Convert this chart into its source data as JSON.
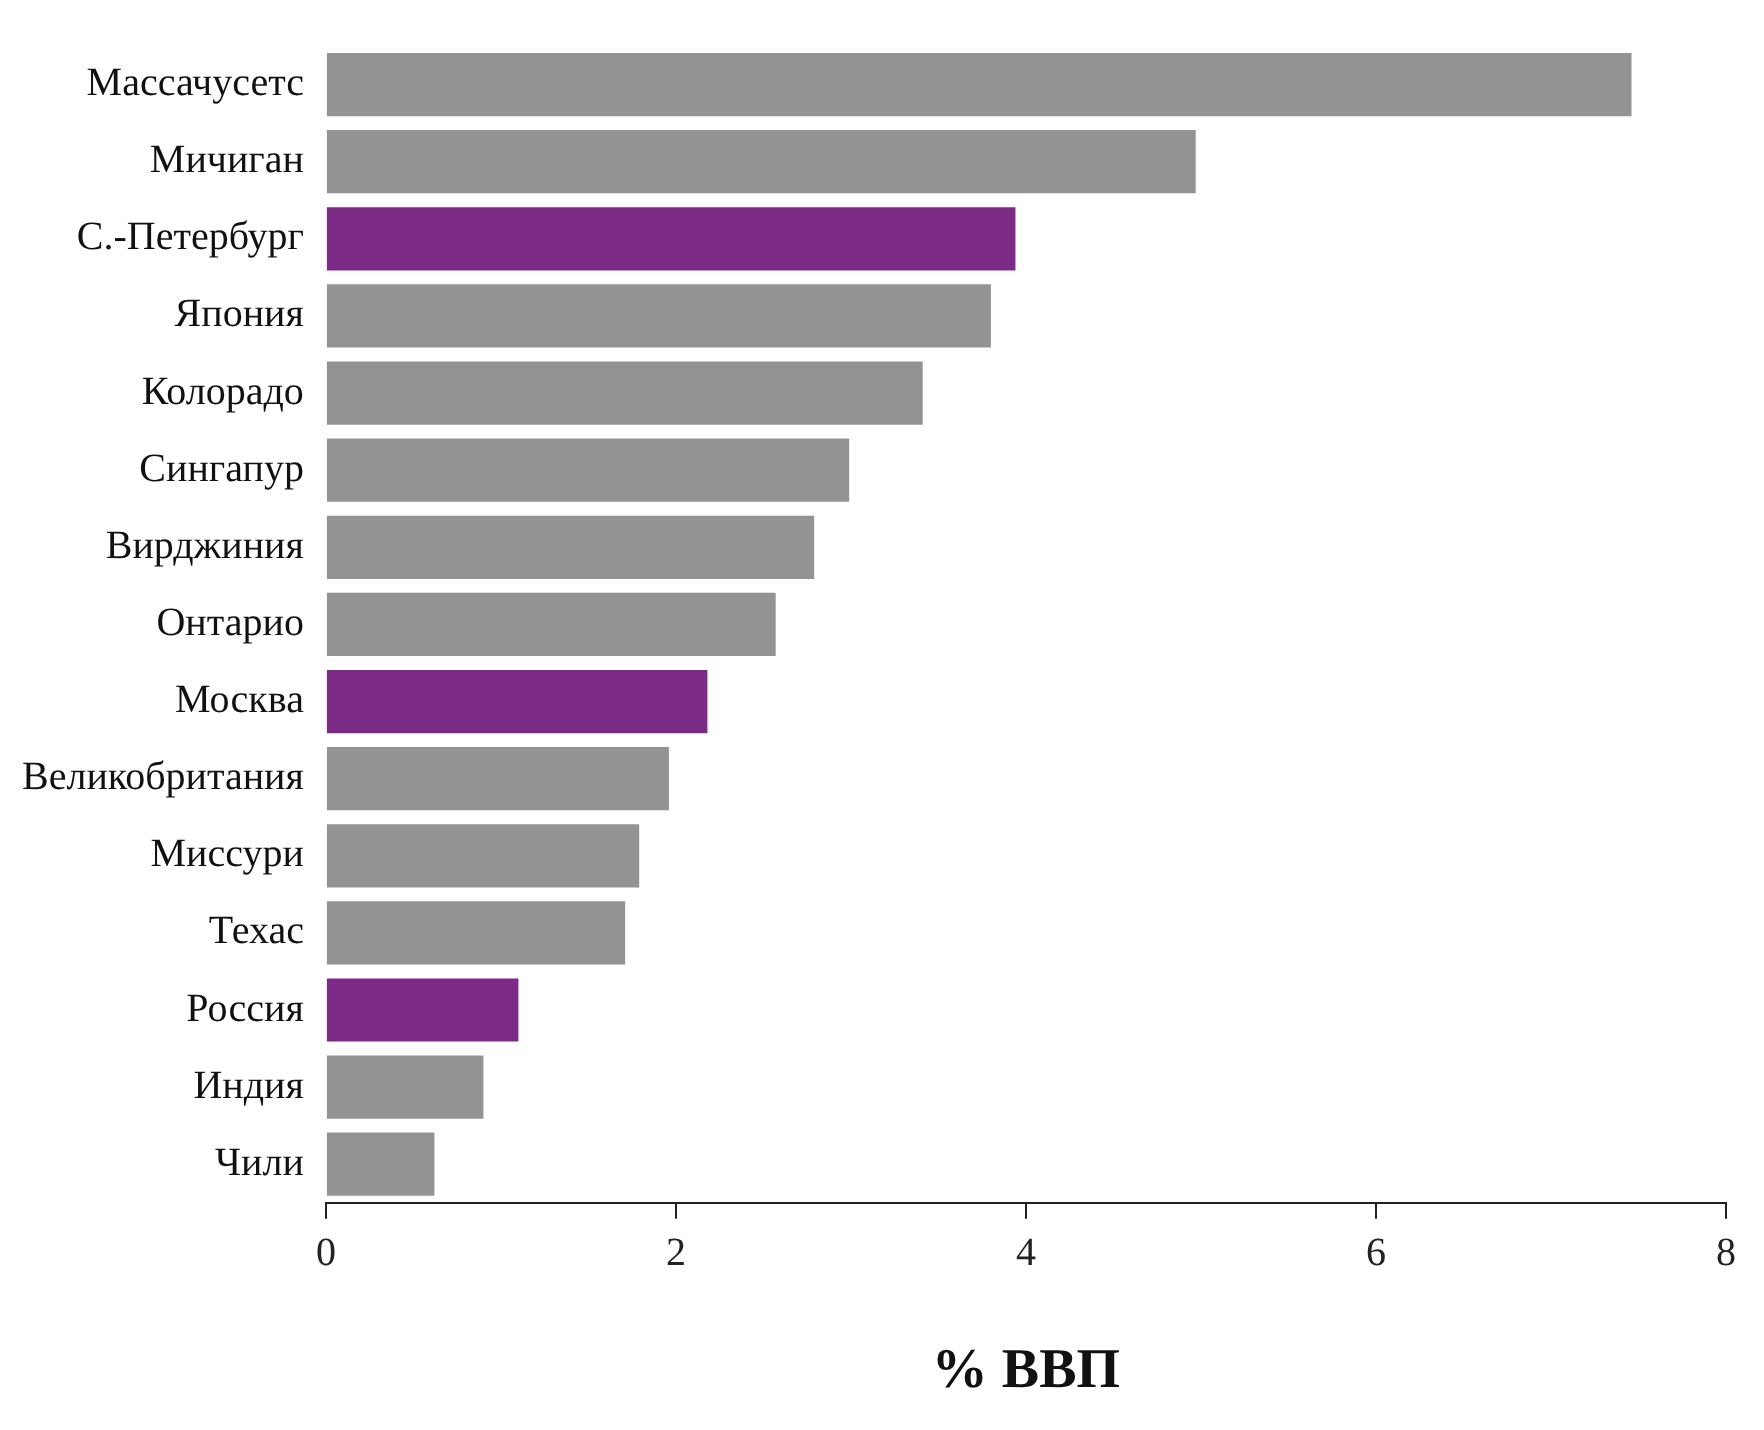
{
  "chart_data": {
    "type": "bar",
    "orientation": "horizontal",
    "xlabel": "% ВВП",
    "categories": [
      "Массачусетс",
      "Мичиган",
      "С.-Петербург",
      "Япония",
      "Колорадо",
      "Сингапур",
      "Вирджиния",
      "Онтарио",
      "Москва",
      "Великобритания",
      "Миссури",
      "Техас",
      "Россия",
      "Индия",
      "Чили"
    ],
    "values": [
      7.46,
      4.97,
      3.94,
      3.8,
      3.41,
      2.99,
      2.79,
      2.57,
      2.18,
      1.96,
      1.79,
      1.71,
      1.1,
      0.9,
      0.62
    ],
    "colors": [
      "#939393",
      "#939393",
      "#7b2a86",
      "#939393",
      "#939393",
      "#939393",
      "#939393",
      "#939393",
      "#7b2a86",
      "#939393",
      "#939393",
      "#939393",
      "#7b2a86",
      "#939393",
      "#939393"
    ],
    "xlim": [
      0,
      8
    ],
    "xticks": [
      0,
      2,
      4,
      6,
      8
    ],
    "grid": false,
    "legend": false
  }
}
